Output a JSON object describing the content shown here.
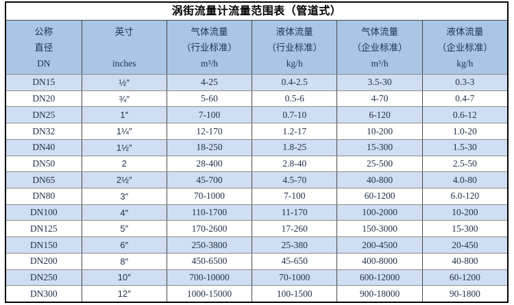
{
  "title": "涡街流量计流量范围表（管道式）",
  "colors": {
    "header_bg": "#a9c6e6",
    "row_alt_bg": "#cfdef2",
    "row_bg": "#ffffff",
    "outer_border": "#000000",
    "column_border": "#454545",
    "row_border": "#8a8a8a",
    "text": "#222f48"
  },
  "table": {
    "columns": [
      {
        "name": "nominal-diameter",
        "lines": [
          "公称",
          "直径",
          "DN"
        ]
      },
      {
        "name": "inches",
        "lines": [
          "英寸",
          "",
          "inches"
        ]
      },
      {
        "name": "gas-flow-industry-standard",
        "lines": [
          "气体流量",
          "（行业标准）",
          "m³/h"
        ]
      },
      {
        "name": "liquid-flow-industry-standard",
        "lines": [
          "液体流量",
          "（行业标准）",
          "kg/h"
        ]
      },
      {
        "name": "gas-flow-enterprise-standard",
        "lines": [
          "气体流量",
          "（企业标准）",
          "m³/h"
        ]
      },
      {
        "name": "liquid-flow-enterprise-standard",
        "lines": [
          "液体流量",
          "（企业标准）",
          "kg/h"
        ]
      }
    ],
    "rows": [
      [
        "DN15",
        "½″",
        "4-25",
        "0.4-2.5",
        "3.5-30",
        "0.3-3"
      ],
      [
        "DN20",
        "¾″",
        "5-60",
        "0.5-6",
        "4-70",
        "0.4-7"
      ],
      [
        "DN25",
        "1″",
        "7-100",
        "0.7-10",
        "6-120",
        "0.6-12"
      ],
      [
        "DN32",
        "1¼″",
        "12-170",
        "1.2-17",
        "10-200",
        "1.0-20"
      ],
      [
        "DN40",
        "1½″",
        "18-250",
        "1.8-25",
        "15-300",
        "1.5-30"
      ],
      [
        "DN50",
        "2",
        "28-400",
        "2.8-40",
        "25-500",
        "2.5-50"
      ],
      [
        "DN65",
        "2½″",
        "45-700",
        "4.5-70",
        "40-800",
        "4.0-80"
      ],
      [
        "DN80",
        "3″",
        "70-1000",
        "7-100",
        "60-1200",
        "6.0-120"
      ],
      [
        "DN100",
        "4″",
        "110-1700",
        "11-170",
        "100-2000",
        "10-200"
      ],
      [
        "DN125",
        "5″",
        "170-2600",
        "17-260",
        "150-3000",
        "15-300"
      ],
      [
        "DN150",
        "6″",
        "250-3800",
        "25-380",
        "200-4500",
        "20-450"
      ],
      [
        "DN200",
        "8″",
        "450-6500",
        "45-650",
        "400-8000",
        "40-800"
      ],
      [
        "DN250",
        "10″",
        "700-10000",
        "70-1000",
        "600-12000",
        "60-1200"
      ],
      [
        "DN300",
        "12″",
        "1000-15000",
        "100-1500",
        "900-18000",
        "90-1800"
      ]
    ]
  }
}
